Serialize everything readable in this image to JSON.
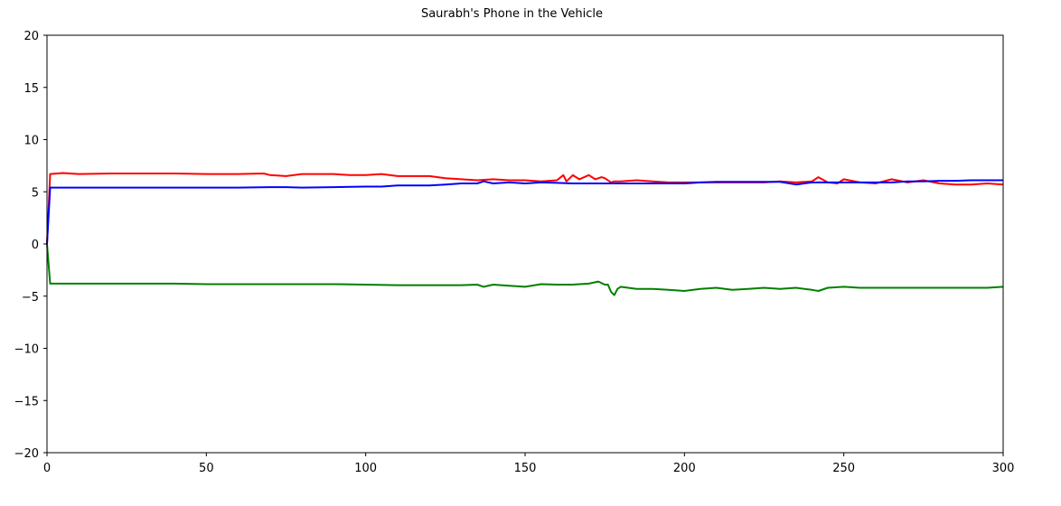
{
  "chart_data": {
    "type": "line",
    "title": "Saurabh's Phone in the Vehicle",
    "xlabel": "",
    "ylabel": "",
    "xlim": [
      0,
      300
    ],
    "ylim": [
      -20,
      20
    ],
    "xticks": [
      0,
      50,
      100,
      150,
      200,
      250,
      300
    ],
    "yticks": [
      -20,
      -15,
      -10,
      -5,
      0,
      5,
      10,
      15,
      20
    ],
    "grid": false,
    "legend": "none",
    "series": [
      {
        "color": "#ff0000",
        "x": [
          0,
          1,
          5,
          10,
          20,
          30,
          40,
          50,
          60,
          68,
          70,
          75,
          80,
          90,
          95,
          100,
          105,
          110,
          120,
          125,
          130,
          135,
          140,
          145,
          150,
          155,
          160,
          162,
          163,
          165,
          167,
          170,
          172,
          174,
          175,
          177,
          178,
          180,
          185,
          190,
          195,
          200,
          205,
          210,
          215,
          220,
          225,
          230,
          235,
          240,
          242,
          245,
          248,
          250,
          255,
          260,
          265,
          270,
          275,
          280,
          285,
          290,
          295,
          300
        ],
        "y": [
          0,
          6.7,
          6.8,
          6.7,
          6.75,
          6.75,
          6.75,
          6.7,
          6.7,
          6.75,
          6.6,
          6.5,
          6.7,
          6.7,
          6.6,
          6.6,
          6.7,
          6.5,
          6.5,
          6.3,
          6.2,
          6.1,
          6.2,
          6.1,
          6.1,
          6.0,
          6.1,
          6.6,
          6.0,
          6.6,
          6.2,
          6.6,
          6.2,
          6.4,
          6.3,
          5.9,
          6.0,
          6.0,
          6.1,
          6.0,
          5.9,
          5.9,
          5.9,
          5.9,
          5.9,
          5.9,
          5.9,
          6.0,
          5.9,
          6.0,
          6.4,
          5.9,
          5.8,
          6.2,
          5.9,
          5.8,
          6.2,
          5.9,
          6.1,
          5.8,
          5.7,
          5.7,
          5.8,
          5.7
        ]
      },
      {
        "color": "#0000ff",
        "x": [
          0,
          1,
          5,
          10,
          20,
          30,
          40,
          50,
          60,
          70,
          75,
          80,
          90,
          100,
          105,
          110,
          120,
          125,
          130,
          135,
          137,
          140,
          145,
          150,
          155,
          160,
          165,
          170,
          175,
          180,
          185,
          190,
          195,
          200,
          205,
          210,
          215,
          220,
          225,
          230,
          235,
          240,
          245,
          250,
          255,
          260,
          265,
          270,
          275,
          280,
          285,
          290,
          295,
          300
        ],
        "y": [
          0,
          5.4,
          5.4,
          5.4,
          5.4,
          5.4,
          5.4,
          5.4,
          5.4,
          5.45,
          5.45,
          5.4,
          5.45,
          5.5,
          5.5,
          5.6,
          5.6,
          5.7,
          5.8,
          5.8,
          6.0,
          5.8,
          5.9,
          5.8,
          5.9,
          5.85,
          5.8,
          5.8,
          5.8,
          5.8,
          5.8,
          5.8,
          5.8,
          5.8,
          5.9,
          5.95,
          5.95,
          5.95,
          5.95,
          5.95,
          5.7,
          5.9,
          5.9,
          5.9,
          5.9,
          5.9,
          5.9,
          6.0,
          6.0,
          6.05,
          6.05,
          6.1,
          6.1,
          6.1
        ]
      },
      {
        "color": "#008000",
        "x": [
          0,
          1,
          5,
          10,
          20,
          30,
          40,
          50,
          60,
          70,
          80,
          90,
          100,
          110,
          120,
          130,
          135,
          137,
          140,
          145,
          150,
          155,
          160,
          165,
          170,
          173,
          175,
          176,
          177,
          178,
          179,
          180,
          185,
          190,
          195,
          200,
          205,
          210,
          215,
          220,
          225,
          230,
          235,
          240,
          242,
          245,
          250,
          255,
          260,
          265,
          270,
          275,
          280,
          285,
          290,
          295,
          300
        ],
        "y": [
          0,
          -3.8,
          -3.8,
          -3.8,
          -3.8,
          -3.8,
          -3.8,
          -3.85,
          -3.85,
          -3.85,
          -3.85,
          -3.85,
          -3.9,
          -3.95,
          -3.95,
          -3.95,
          -3.9,
          -4.1,
          -3.9,
          -4.0,
          -4.1,
          -3.85,
          -3.9,
          -3.9,
          -3.8,
          -3.6,
          -3.9,
          -3.9,
          -4.6,
          -4.9,
          -4.3,
          -4.1,
          -4.3,
          -4.3,
          -4.4,
          -4.5,
          -4.3,
          -4.2,
          -4.4,
          -4.3,
          -4.2,
          -4.3,
          -4.2,
          -4.4,
          -4.5,
          -4.2,
          -4.1,
          -4.2,
          -4.2,
          -4.2,
          -4.2,
          -4.2,
          -4.2,
          -4.2,
          -4.2,
          -4.2,
          -4.1
        ]
      }
    ]
  }
}
